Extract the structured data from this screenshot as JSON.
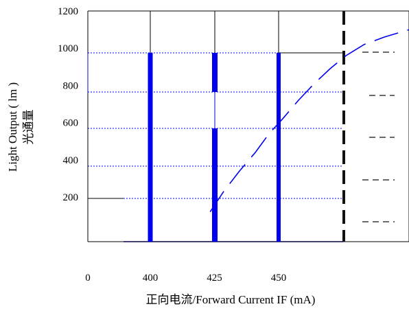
{
  "chart_data": {
    "type": "line",
    "title": "",
    "xlabel": "正向电流/Forward Current  IF (mA)",
    "ylabel": "Light Output ( lm )",
    "ylabel_cn": "光通量",
    "x_ticks": [
      {
        "value": 0,
        "label": "0"
      },
      {
        "value": 400,
        "label": "400"
      },
      {
        "value": 425,
        "label": "425"
      },
      {
        "value": 450,
        "label": "450"
      }
    ],
    "y_ticks": [
      {
        "value": 200,
        "label": "200"
      },
      {
        "value": 400,
        "label": "400"
      },
      {
        "value": 600,
        "label": "600"
      },
      {
        "value": 800,
        "label": "800"
      },
      {
        "value": 1000,
        "label": "1000"
      },
      {
        "value": 1200,
        "label": "1200"
      }
    ],
    "ylim": [
      -40,
      1200
    ],
    "series": [
      {
        "name": "",
        "color": "#0000ee",
        "style": "dashed",
        "points": [
          {
            "x": 0.54,
            "y": 120
          },
          {
            "x": 0.6,
            "y": 230
          },
          {
            "x": 0.67,
            "y": 340
          },
          {
            "x": 0.74,
            "y": 440
          },
          {
            "x": 0.8,
            "y": 540
          },
          {
            "x": 0.86,
            "y": 620
          },
          {
            "x": 0.93,
            "y": 720
          },
          {
            "x": 1.0,
            "y": 810
          },
          {
            "x": 1.07,
            "y": 890
          },
          {
            "x": 1.14,
            "y": 960
          },
          {
            "x": 1.22,
            "y": 1020
          },
          {
            "x": 1.31,
            "y": 1060
          },
          {
            "x": 1.42,
            "y": 1100
          }
        ]
      }
    ],
    "colors": {
      "accent": "#0000ee",
      "frame": "#000000",
      "marker": "#111111"
    }
  }
}
